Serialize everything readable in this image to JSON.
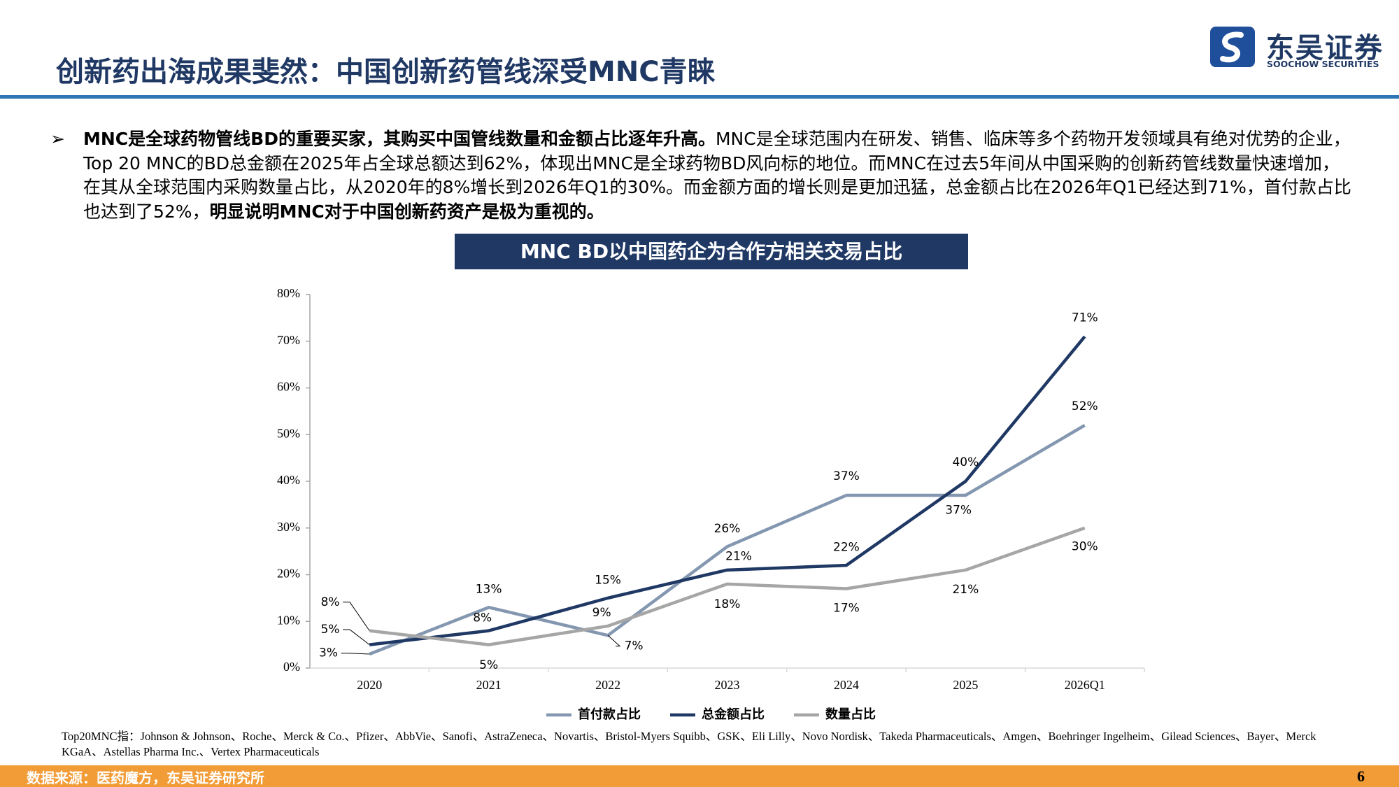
{
  "header": {
    "title": "创新药出海成果斐然：中国创新药管线深受MNC青睐",
    "logo_cn": "东吴证券",
    "logo_en": "SOOCHOW SECURITIES"
  },
  "bullet": [
    "MNC是全球药物管线BD的重要买家，其购买中国管线数量和金额占比逐年升高。",
    "MNC是全球范围内在研发、销售、临床等多个药物开发领域具有绝对优势的企业，Top 20 MNC的BD总金额在2025年占全球总额达到62%，体现出MNC是全球药物BD风向标的地位。而MNC在过去5年间从中国采购的创新药管线数量快速增加，在其从全球范围内采购数量占比，从2020年的8%增长到2026年Q1的30%。而金额方面的增长则是更加迅猛，总金额占比在2026年Q1已经达到71%，首付款占比也达到了52%，",
    "明显说明MNC对于中国创新药资产是极为重视的。"
  ],
  "chart_data": {
    "type": "line",
    "title": "MNC BD以中国药企为合作方相关交易占比",
    "categories": [
      "2020",
      "2021",
      "2022",
      "2023",
      "2024",
      "2025",
      "2026Q1"
    ],
    "series": [
      {
        "name": "首付款占比",
        "color": "#8497b0",
        "values": [
          3,
          13,
          7,
          26,
          37,
          37,
          52
        ],
        "value_labels": [
          "3%",
          "13%",
          "7%",
          "26%",
          "37%",
          "37%",
          "52%"
        ]
      },
      {
        "name": "总金额占比",
        "color": "#1f3864",
        "values": [
          5,
          8,
          15,
          21,
          22,
          40,
          71
        ],
        "value_labels": [
          "5%",
          "8%",
          "15%",
          "21%",
          "22%",
          "40%",
          "71%"
        ]
      },
      {
        "name": "数量占比",
        "color": "#a6a6a6",
        "values": [
          8,
          5,
          9,
          18,
          17,
          21,
          30
        ],
        "value_labels": [
          "8%",
          "5%",
          "9%",
          "18%",
          "17%",
          "21%",
          "30%"
        ]
      }
    ],
    "ylim": [
      0,
      80
    ],
    "yticks": [
      {
        "value": 0,
        "label": "0%"
      },
      {
        "value": 10,
        "label": "10%"
      },
      {
        "value": 20,
        "label": "20%"
      },
      {
        "value": 30,
        "label": "30%"
      },
      {
        "value": 40,
        "label": "40%"
      },
      {
        "value": 50,
        "label": "50%"
      },
      {
        "value": 60,
        "label": "60%"
      },
      {
        "value": 70,
        "label": "70%"
      },
      {
        "value": 80,
        "label": "80%"
      }
    ],
    "grid": false,
    "legend": "bottom"
  },
  "footnote": "Top20MNC指：Johnson & Johnson、Roche、Merck & Co.、Pfizer、AbbVie、Sanofi、AstraZeneca、Novartis、Bristol-Myers Squibb、GSK、Eli Lilly、Novo Nordisk、Takeda Pharmaceuticals、Amgen、Boehringer Ingelheim、Gilead Sciences、Bayer、Merck KGaA、Astellas Pharma Inc.、Vertex Pharmaceuticals",
  "footer": {
    "source": "数据来源：医药魔方，东吴证券研究所",
    "page": "6"
  }
}
